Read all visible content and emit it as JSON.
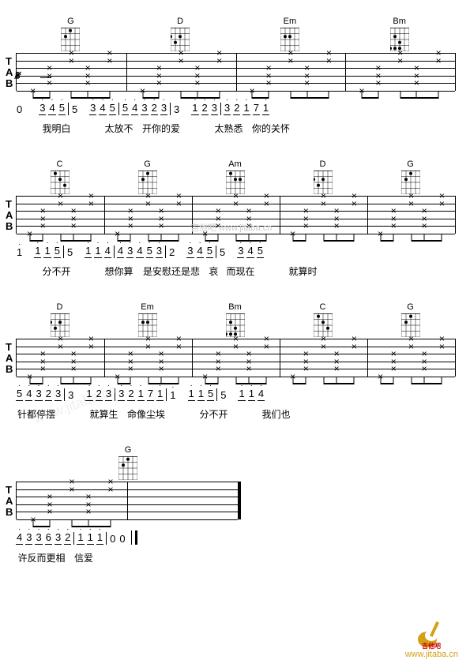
{
  "watermark_text": "吉他吧 www.jitaba.cn",
  "logo_text": "www.jitaba.cn",
  "lines": [
    {
      "chords": [
        {
          "name": "G",
          "dots": [
            [
              0,
              2
            ],
            [
              1,
              1
            ],
            [
              4,
              0
            ],
            [
              4,
              2
            ]
          ]
        },
        {
          "name": "D",
          "dots": [
            [
              1,
              0
            ],
            [
              1,
              2
            ],
            [
              2,
              1
            ]
          ]
        },
        {
          "name": "Em",
          "dots": [
            [
              1,
              1
            ],
            [
              1,
              2
            ]
          ]
        },
        {
          "name": "Bm",
          "dots": [
            [
              1,
              1
            ],
            [
              2,
              2
            ],
            [
              3,
              0
            ],
            [
              3,
              1
            ],
            [
              3,
              2
            ]
          ]
        }
      ],
      "has_segno": true,
      "number_notation": "0  3 4 5 | 5  3 4 5 | 5 4 3 2 3 | 3  1 2 3 | 3 2 1 7 1",
      "lyrics": "   我明白    太放不    开你的爱     太熟悉   你的关怀",
      "num_groups": [
        {
          "pre": "0",
          "pre_sp": 20,
          "nums": [
            {
              "t": "3",
              "ul": 1,
              "da": 1
            },
            {
              "t": "4",
              "ul": 1,
              "da": 1
            },
            {
              "t": "5",
              "ul": 1,
              "da": 1
            }
          ]
        },
        {
          "pre": "5",
          "pre_sp": 14,
          "nums": [
            {
              "t": "3",
              "ul": 1,
              "da": 1
            },
            {
              "t": "4",
              "ul": 1,
              "da": 1
            },
            {
              "t": "5",
              "ul": 1,
              "da": 1
            }
          ]
        },
        {
          "nums": [
            {
              "t": "5",
              "ul": 1,
              "da": 1
            },
            {
              "t": "4",
              "ul": 1,
              "da": 1
            },
            {
              "t": "3",
              "ul": 1,
              "da": 1
            },
            {
              "t": "2",
              "ul": 1,
              "da": 1
            },
            {
              "t": "3",
              "ul": 1,
              "da": 1
            }
          ]
        },
        {
          "pre": "3",
          "pre_sp": 14,
          "nums": [
            {
              "t": "1",
              "ul": 1,
              "da": 1
            },
            {
              "t": "2",
              "ul": 1,
              "da": 1
            },
            {
              "t": "3",
              "ul": 1,
              "da": 1
            }
          ]
        },
        {
          "nums": [
            {
              "t": "3",
              "ul": 1,
              "da": 1
            },
            {
              "t": "2",
              "ul": 1,
              "da": 1
            },
            {
              "t": "1",
              "ul": 1,
              "da": 1
            },
            {
              "t": "7",
              "ul": 1
            },
            {
              "t": "1",
              "ul": 1,
              "da": 1
            }
          ]
        }
      ],
      "lyric_groups": [
        "",
        "我明白",
        "",
        "太放不",
        "开你的爱",
        "",
        "太熟悉",
        "你的关怀"
      ]
    },
    {
      "chords": [
        {
          "name": "C",
          "dots": [
            [
              0,
              1
            ],
            [
              1,
              2
            ],
            [
              2,
              3
            ]
          ]
        },
        {
          "name": "G",
          "dots": [
            [
              0,
              2
            ],
            [
              1,
              1
            ],
            [
              4,
              0
            ],
            [
              4,
              2
            ]
          ]
        },
        {
          "name": "Am",
          "dots": [
            [
              0,
              1
            ],
            [
              1,
              2
            ],
            [
              1,
              3
            ]
          ]
        },
        {
          "name": "D",
          "dots": [
            [
              1,
              0
            ],
            [
              1,
              2
            ],
            [
              2,
              1
            ]
          ]
        },
        {
          "name": "G",
          "dots": [
            [
              0,
              2
            ],
            [
              1,
              1
            ],
            [
              4,
              0
            ],
            [
              4,
              2
            ]
          ]
        }
      ],
      "has_watermark": true,
      "num_groups": [
        {
          "pre": "i",
          "pre_sp": 14,
          "nums": [
            {
              "t": "1",
              "ul": 1,
              "da": 1
            },
            {
              "t": "1",
              "ul": 1,
              "da": 1
            },
            {
              "t": "5",
              "ul": 1,
              "da": 1
            }
          ]
        },
        {
          "pre": "5",
          "pre_sp": 14,
          "nums": [
            {
              "t": "1",
              "ul": 1,
              "da": 1
            },
            {
              "t": "1",
              "ul": 1,
              "da": 1
            },
            {
              "t": "4",
              "ul": 1,
              "da": 1
            }
          ]
        },
        {
          "nums": [
            {
              "t": "4",
              "ul": 1,
              "da": 1
            },
            {
              "t": "3",
              "ul": 1,
              "da": 1
            },
            {
              "t": "4",
              "ul": 1,
              "da": 1
            },
            {
              "t": "5",
              "ul": 1,
              "da": 1
            },
            {
              "t": "3",
              "ul": 1,
              "da": 1
            }
          ]
        },
        {
          "pre": "2",
          "pre_sp": 14,
          "nums": [
            {
              "t": "3",
              "ul": 1,
              "da": 1
            },
            {
              "t": "4",
              "ul": 1,
              "da": 1
            },
            {
              "t": "5",
              "ul": 1,
              "da": 1
            }
          ]
        },
        {
          "pre": "5",
          "pre_sp": 14,
          "nums": [
            {
              "t": "3",
              "ul": 1,
              "da": 1
            },
            {
              "t": "4",
              "ul": 1,
              "da": 1
            },
            {
              "t": "5",
              "ul": 1,
              "da": 1
            }
          ]
        }
      ],
      "lyric_groups": [
        "",
        "分不开",
        "",
        "想你算",
        "是安慰还是悲",
        "哀",
        "而现在",
        "",
        "就算时"
      ]
    },
    {
      "chords": [
        {
          "name": "D",
          "dots": [
            [
              1,
              0
            ],
            [
              1,
              2
            ],
            [
              2,
              1
            ]
          ]
        },
        {
          "name": "Em",
          "dots": [
            [
              1,
              1
            ],
            [
              1,
              2
            ]
          ]
        },
        {
          "name": "Bm",
          "dots": [
            [
              1,
              1
            ],
            [
              2,
              2
            ],
            [
              3,
              0
            ],
            [
              3,
              1
            ],
            [
              3,
              2
            ]
          ]
        },
        {
          "name": "C",
          "dots": [
            [
              0,
              1
            ],
            [
              1,
              2
            ],
            [
              2,
              3
            ]
          ]
        },
        {
          "name": "G",
          "dots": [
            [
              0,
              2
            ],
            [
              1,
              1
            ],
            [
              4,
              0
            ],
            [
              4,
              2
            ]
          ]
        }
      ],
      "has_watermark_faint": true,
      "num_groups": [
        {
          "nums": [
            {
              "t": "5",
              "ul": 1,
              "da": 1
            },
            {
              "t": "4",
              "ul": 1,
              "da": 1
            },
            {
              "t": "3",
              "ul": 1,
              "da": 1
            },
            {
              "t": "2",
              "ul": 1,
              "da": 1
            },
            {
              "t": "3",
              "ul": 1,
              "da": 1
            }
          ]
        },
        {
          "pre": "3",
          "pre_sp": 14,
          "nums": [
            {
              "t": "1",
              "ul": 1,
              "da": 1
            },
            {
              "t": "2",
              "ul": 1,
              "da": 1
            },
            {
              "t": "3",
              "ul": 1,
              "da": 1
            }
          ]
        },
        {
          "nums": [
            {
              "t": "3",
              "ul": 1,
              "da": 1
            },
            {
              "t": "2",
              "ul": 1,
              "da": 1
            },
            {
              "t": "1",
              "ul": 1,
              "da": 1
            },
            {
              "t": "7",
              "ul": 1
            },
            {
              "t": "1",
              "ul": 1,
              "da": 1
            }
          ]
        },
        {
          "pre": "i",
          "pre_sp": 14,
          "nums": [
            {
              "t": "1",
              "ul": 1,
              "da": 1
            },
            {
              "t": "1",
              "ul": 1,
              "da": 1
            },
            {
              "t": "5",
              "ul": 1,
              "da": 1
            }
          ]
        },
        {
          "pre": "5",
          "pre_sp": 14,
          "nums": [
            {
              "t": "1",
              "ul": 1,
              "da": 1
            },
            {
              "t": "1",
              "ul": 1,
              "da": 1
            },
            {
              "t": "4",
              "ul": 1,
              "da": 1
            }
          ]
        }
      ],
      "lyric_groups": [
        "针都停摆",
        "",
        "就算生",
        "命像尘埃",
        "",
        "分不开",
        "",
        "我们也"
      ]
    },
    {
      "chords": [
        {
          "name": "G",
          "dots": [
            [
              0,
              2
            ],
            [
              1,
              1
            ],
            [
              4,
              0
            ],
            [
              4,
              2
            ]
          ]
        }
      ],
      "short": true,
      "has_endbar": true,
      "num_groups": [
        {
          "nums": [
            {
              "t": "4",
              "ul": 1,
              "da": 1
            },
            {
              "t": "3",
              "ul": 1,
              "da": 1
            },
            {
              "t": "3",
              "ul": 1,
              "da": 1
            },
            {
              "t": "6",
              "ul": 1,
              "da": 1
            },
            {
              "t": "3",
              "ul": 1,
              "da": 1
            },
            {
              "t": "2",
              "ul": 1,
              "da": 1
            }
          ]
        },
        {
          "nums": [
            {
              "t": "1",
              "ul": 1,
              "da": 1
            },
            {
              "t": "1",
              "ul": 1,
              "da": 1
            },
            {
              "t": "1",
              "ul": 1,
              "da": 1
            }
          ]
        },
        {
          "pre": "",
          "nums": [
            {
              "t": "0"
            },
            {
              "t": "0"
            }
          ]
        }
      ],
      "lyric_groups": [
        "许反而更相",
        "信爱"
      ],
      "end_bar": true
    }
  ],
  "tab_label_letters": [
    "T",
    "A",
    "B"
  ],
  "colors": {
    "line": "#000000",
    "watermark": "#cccccc",
    "logo": "#d4a017",
    "logo_red": "#c00000"
  }
}
